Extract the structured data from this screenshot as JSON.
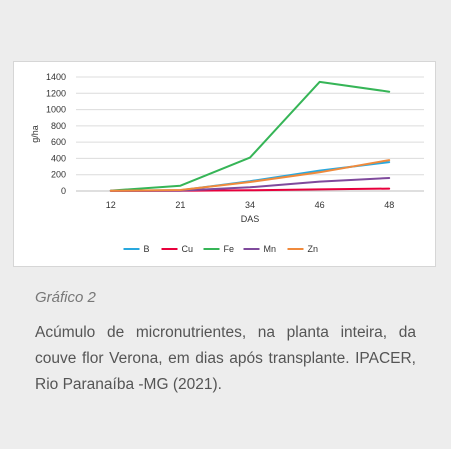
{
  "chart_data": {
    "type": "line",
    "categories": [
      "12",
      "21",
      "34",
      "46",
      "48"
    ],
    "series": [
      {
        "name": "B",
        "color": "#29a8de",
        "values": [
          2,
          10,
          120,
          250,
          355
        ]
      },
      {
        "name": "Cu",
        "color": "#e8003c",
        "values": [
          1,
          2,
          8,
          20,
          30
        ]
      },
      {
        "name": "Fe",
        "color": "#36b557",
        "values": [
          5,
          65,
          410,
          1340,
          1220
        ]
      },
      {
        "name": "Mn",
        "color": "#7f4a9c",
        "values": [
          1,
          5,
          45,
          115,
          160
        ]
      },
      {
        "name": "Zn",
        "color": "#f08a3c",
        "values": [
          2,
          12,
          110,
          230,
          380
        ]
      }
    ],
    "ylabel": "g/ha",
    "xlabel": "DAS",
    "ylim": [
      0,
      1400
    ],
    "yticks": [
      "0",
      "200",
      "400",
      "600",
      "800",
      "1000",
      "1200",
      "1400"
    ],
    "grid": true,
    "legend_position": "bottom"
  },
  "caption": {
    "title": "Gráfico 2",
    "text": "Acúmulo de micronutrientes, na planta inteira, da couve flor Verona, em dias após transplante. IPACER, Rio Paranaíba -MG (2021)."
  }
}
